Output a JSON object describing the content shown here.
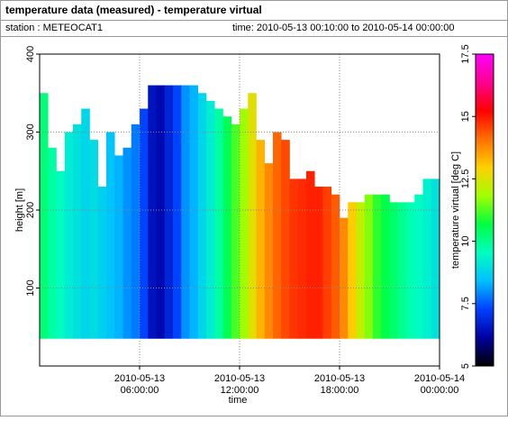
{
  "chart_data": {
    "type": "heatmap",
    "title": "temperature data (measured) - temperature virtual",
    "station_label": "station : METEOCAT1",
    "time_label": "time: 2010-05-13 00:10:00 to 2010-05-14 00:00:00",
    "xlabel": "time",
    "ylabel": "height [m]",
    "colorbar_label": "temperature virtual [deg C]",
    "x": [
      0.25,
      0.75,
      1.25,
      1.75,
      2.25,
      2.75,
      3.25,
      3.75,
      4.25,
      4.75,
      5.25,
      5.75,
      6.25,
      6.75,
      7.25,
      7.75,
      8.25,
      8.75,
      9.25,
      9.75,
      10.25,
      10.75,
      11.25,
      11.75,
      12.25,
      12.75,
      13.25,
      13.75,
      14.25,
      14.75,
      15.25,
      15.75,
      16.25,
      16.75,
      17.25,
      17.75,
      18.25,
      18.75,
      19.25,
      19.75,
      20.25,
      20.75,
      21.25,
      21.75,
      22.25,
      22.75,
      23.25,
      23.75
    ],
    "base": 35,
    "tops": [
      350,
      280,
      250,
      300,
      310,
      330,
      290,
      230,
      300,
      270,
      280,
      310,
      330,
      360,
      360,
      360,
      360,
      360,
      360,
      350,
      340,
      330,
      320,
      310,
      330,
      350,
      290,
      260,
      300,
      290,
      240,
      240,
      250,
      230,
      230,
      220,
      190,
      210,
      210,
      220,
      220,
      220,
      210,
      210,
      210,
      220,
      240,
      240
    ],
    "values": [
      10.2,
      9.8,
      9.5,
      9.2,
      9.0,
      8.8,
      8.9,
      8.7,
      8.5,
      8.3,
      8.0,
      7.8,
      7.3,
      6.5,
      6.3,
      6.8,
      7.3,
      8.0,
      8.3,
      8.8,
      9.2,
      9.8,
      10.5,
      11.2,
      11.8,
      12.6,
      13.3,
      13.8,
      14.2,
      14.5,
      14.7,
      14.8,
      14.9,
      14.9,
      14.6,
      14.3,
      13.8,
      13.0,
      12.2,
      11.6,
      11.0,
      10.6,
      10.3,
      10.0,
      9.7,
      9.5,
      9.3,
      9.0
    ],
    "xlim": [
      0,
      24
    ],
    "xticks": [
      {
        "value": 6,
        "label": "2010-05-13 06:00:00"
      },
      {
        "value": 12,
        "label": "2010-05-13 12:00:00"
      },
      {
        "value": 18,
        "label": "2010-05-13 18:00:00"
      },
      {
        "value": 24,
        "label": "2010-05-14 00:00:00"
      }
    ],
    "ylim": [
      0,
      400
    ],
    "yticks": [
      100,
      200,
      300,
      400
    ],
    "clim": [
      5,
      17.5
    ],
    "cticks": [
      5,
      7.5,
      10,
      12.5,
      15,
      17.5
    ],
    "colormap": [
      "#000000",
      "#0000a0",
      "#0040ff",
      "#00c0ff",
      "#00ffc0",
      "#00ff40",
      "#a0ff00",
      "#ffd000",
      "#ff7000",
      "#ff0000",
      "#ff0090",
      "#ff00ff"
    ],
    "grid": true
  }
}
